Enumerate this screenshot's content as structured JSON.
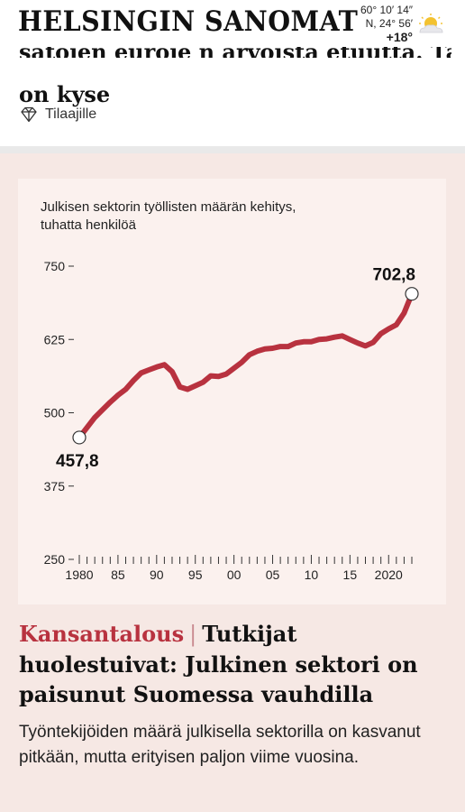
{
  "header": {
    "logo": "HELSINGIN SANOMAT",
    "weather": {
      "coord_lat": "60° 10′ 14″",
      "coord_lon": "N, 24° 56′",
      "temperature": "+18°",
      "icon": "partly-cloudy-icon"
    }
  },
  "prev_article": {
    "title_fragment": "satojen euroje n arvoista etuutta. Tästä",
    "title_tail": "on kyse",
    "subscriber_label": "Tilaajille",
    "subscriber_icon": "diamond-icon"
  },
  "teaser": {
    "section": "Kansantalous",
    "separator": "|",
    "headline": "Tutkijat huolestuivat: Julkinen sektori on paisunut Suomessa vauhdilla",
    "lede": "Työntekijöiden määrä julkisella sektorilla on kasvanut pitkään, mutta erityisen paljon viime vuosina."
  },
  "colors": {
    "accent": "#b8323f",
    "teaser_bg": "#f6e8e4",
    "chart_bg": "#fbf1ee"
  },
  "chart_data": {
    "type": "line",
    "title": "Julkisen sektorin työllisten määrän kehitys, tuhatta henkilöä",
    "ylim": [
      250,
      750
    ],
    "y_ticks": [
      {
        "value": 250,
        "label": "250"
      },
      {
        "value": 375,
        "label": "375"
      },
      {
        "value": 500,
        "label": "500"
      },
      {
        "value": 625,
        "label": "625"
      },
      {
        "value": 750,
        "label": "750"
      }
    ],
    "xlim": [
      1980,
      2023
    ],
    "x_ticks": [
      {
        "value": 1980,
        "label": "1980"
      },
      {
        "value": 1985,
        "label": "85"
      },
      {
        "value": 1990,
        "label": "90"
      },
      {
        "value": 1995,
        "label": "95"
      },
      {
        "value": 2000,
        "label": "00"
      },
      {
        "value": 2005,
        "label": "05"
      },
      {
        "value": 2010,
        "label": "10"
      },
      {
        "value": 2015,
        "label": "15"
      },
      {
        "value": 2020,
        "label": "2020"
      }
    ],
    "series": [
      {
        "x": [
          1980,
          1981,
          1982,
          1983,
          1984,
          1985,
          1986,
          1987,
          1988,
          1989,
          1990,
          1991,
          1992,
          1993,
          1994,
          1995,
          1996,
          1997,
          1998,
          1999,
          2000,
          2001,
          2002,
          2003,
          2004,
          2005,
          2006,
          2007,
          2008,
          2009,
          2010,
          2011,
          2012,
          2013,
          2014,
          2015,
          2016,
          2017,
          2018,
          2019,
          2020,
          2021,
          2022,
          2023
        ],
        "y": [
          457.8,
          475,
          492,
          505,
          518,
          530,
          540,
          555,
          568,
          573,
          578,
          582,
          570,
          544,
          540,
          546,
          552,
          563,
          562,
          566,
          576,
          586,
          599,
          605,
          609,
          610,
          613,
          613,
          619,
          621,
          621,
          625,
          626,
          629,
          631,
          625,
          619,
          614,
          620,
          635,
          643,
          650,
          670,
          702.8
        ]
      }
    ],
    "annotations": [
      {
        "x": 1980,
        "y": 457.8,
        "label": "457,8"
      },
      {
        "x": 2023,
        "y": 702.8,
        "label": "702,8"
      }
    ]
  }
}
